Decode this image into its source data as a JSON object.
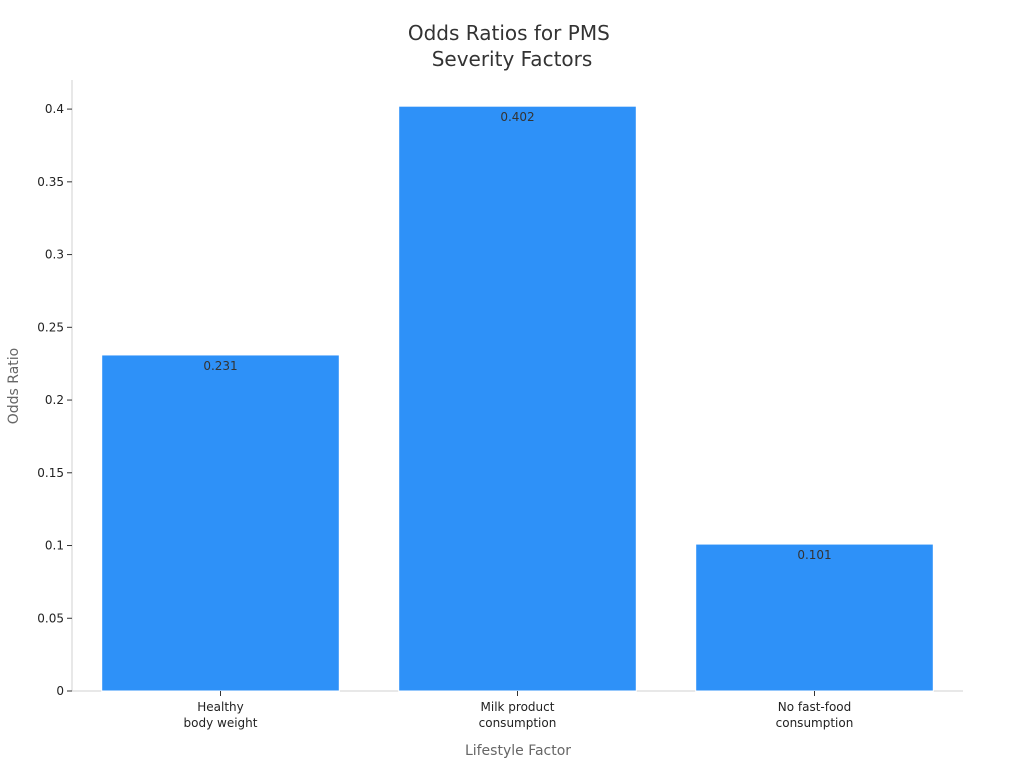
{
  "chart_data": {
    "type": "bar",
    "title": [
      "Odds Ratios for PMS",
      "Severity Factors"
    ],
    "xlabel": "Lifestyle Factor",
    "ylabel": "Odds Ratio",
    "categories": [
      [
        "Healthy",
        "body weight"
      ],
      [
        "Milk product",
        "consumption"
      ],
      [
        "No fast-food",
        "consumption"
      ]
    ],
    "values": [
      0.231,
      0.402,
      0.101
    ],
    "value_labels": [
      "0.231",
      "0.402",
      "0.101"
    ],
    "ylim": [
      0,
      0.42
    ],
    "yticks": [
      0,
      0.05,
      0.1,
      0.15,
      0.2,
      0.25,
      0.3,
      0.35,
      0.4
    ],
    "ytick_labels": [
      "0",
      "0.05",
      "0.1",
      "0.15",
      "0.2",
      "0.25",
      "0.3",
      "0.35",
      "0.4"
    ],
    "grid": false,
    "legend": "none",
    "bar_color": "#2e91f8",
    "bar_edge_color": "#ffffff"
  }
}
